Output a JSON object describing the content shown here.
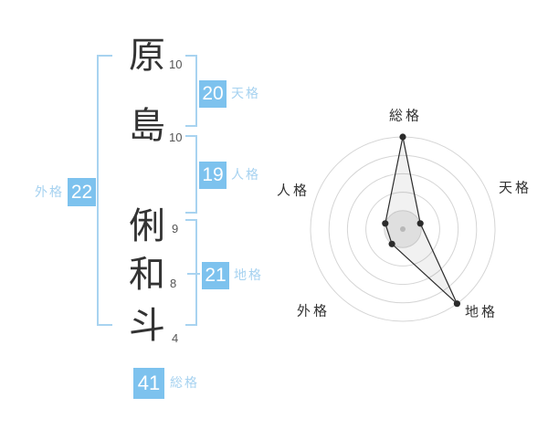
{
  "name_panel": {
    "characters": [
      {
        "char": "原",
        "strokes": "10"
      },
      {
        "char": "島",
        "strokes": "10"
      },
      {
        "char": "俐",
        "strokes": "9"
      },
      {
        "char": "和",
        "strokes": "8"
      },
      {
        "char": "斗",
        "strokes": "4"
      }
    ],
    "kaku": {
      "tenkaku": {
        "label": "天格",
        "value": "20"
      },
      "jinkaku": {
        "label": "人格",
        "value": "19"
      },
      "chikaku": {
        "label": "地格",
        "value": "21"
      },
      "gaikaku": {
        "label": "外格",
        "value": "22"
      },
      "soukaku": {
        "label": "総格",
        "value": "41"
      }
    }
  },
  "colors": {
    "badge_blue": "#7dc2ee",
    "label_blue": "#a6d2f0",
    "bracket_blue": "#a8d3f0",
    "text_dark": "#333333",
    "ring_gray": "#d5d5d5",
    "point_dark": "#2b2b2b",
    "center_dot_gray": "#b8b8b8"
  },
  "chart_data": {
    "type": "radar",
    "axes": [
      {
        "label": "総格",
        "score": 5
      },
      {
        "label": "天格",
        "score": 1
      },
      {
        "label": "地格",
        "score": 5
      },
      {
        "label": "外格",
        "score": 1
      },
      {
        "label": "人格",
        "score": 1
      }
    ],
    "score_max": 5,
    "rings": 5,
    "legend": "none",
    "start_angle_deg": -90,
    "direction": "clockwise"
  }
}
